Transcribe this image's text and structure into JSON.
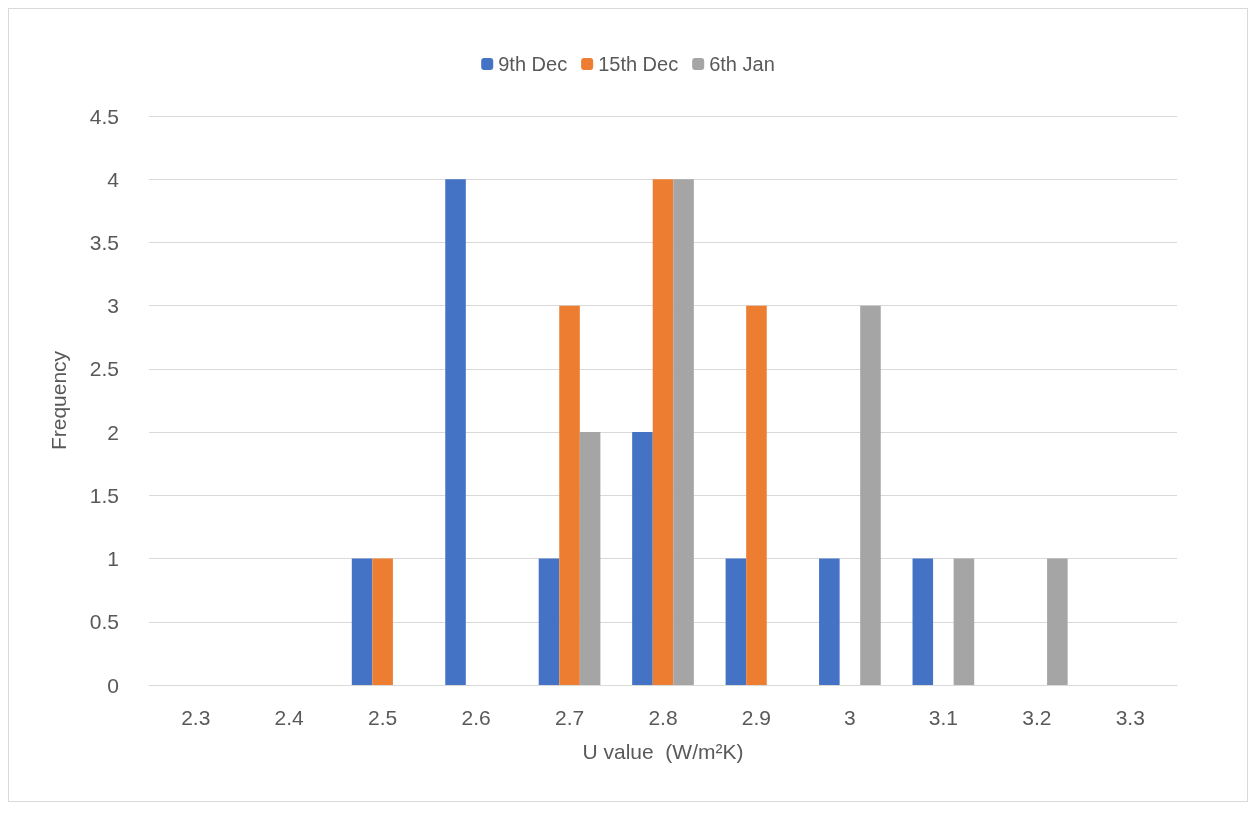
{
  "chart_data": {
    "type": "bar",
    "xlabel": "U value  (W/m²K)",
    "ylabel": "Frequency",
    "categories": [
      "2.3",
      "2.4",
      "2.5",
      "2.6",
      "2.7",
      "2.8",
      "2.9",
      "3",
      "3.1",
      "3.2",
      "3.3"
    ],
    "series": [
      {
        "name": "9th Dec",
        "color": "#4472c4",
        "values": [
          0,
          0,
          1,
          4,
          1,
          2,
          1,
          1,
          1,
          0,
          0
        ]
      },
      {
        "name": "15th Dec",
        "color": "#ed7d31",
        "values": [
          0,
          0,
          1,
          0,
          3,
          4,
          3,
          0,
          0,
          0,
          0
        ]
      },
      {
        "name": "6th Jan",
        "color": "#a5a5a5",
        "values": [
          0,
          0,
          0,
          0,
          2,
          4,
          0,
          3,
          1,
          1,
          0
        ]
      }
    ],
    "ylim": [
      0,
      4.5
    ],
    "yticks": [
      0,
      0.5,
      1,
      1.5,
      2,
      2.5,
      3,
      3.5,
      4,
      4.5
    ],
    "grid": "y",
    "legend": "top"
  }
}
